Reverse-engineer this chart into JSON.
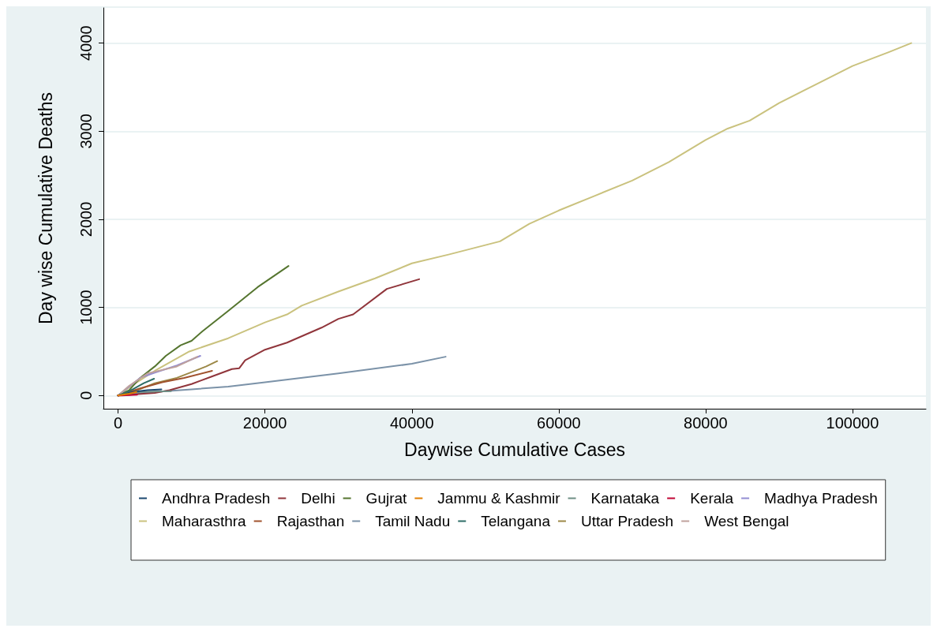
{
  "chart_data": {
    "type": "line",
    "xlabel": "Daywise Cumulative Cases",
    "ylabel": "Day wise Cumulative Deaths",
    "xlim": [
      -2000,
      110000
    ],
    "xticks": [
      0,
      20000,
      40000,
      60000,
      80000,
      100000
    ],
    "ylim": [
      -150,
      4400
    ],
    "yticks": [
      0,
      1000,
      2000,
      3000,
      4000
    ],
    "grid": "y",
    "legend": "bottom",
    "marker": "none",
    "line_style": "solid",
    "series": [
      {
        "name": "Andhra Pradesh",
        "color": "#1a476f",
        "x": [
          0,
          2000,
          4000,
          5900
        ],
        "values": [
          0,
          40,
          60,
          70
        ]
      },
      {
        "name": "Delhi",
        "color": "#90353b",
        "x": [
          0,
          5000,
          7000,
          10000,
          12600,
          15500,
          16500,
          17300,
          20000,
          23000,
          27700,
          30000,
          32000,
          36600,
          41000
        ],
        "values": [
          0,
          30,
          60,
          130,
          210,
          300,
          310,
          400,
          520,
          600,
          770,
          870,
          920,
          1210,
          1320
        ]
      },
      {
        "name": "Gujrat",
        "color": "#55752f",
        "x": [
          0,
          1500,
          3000,
          5000,
          6500,
          8500,
          10000,
          11500,
          15000,
          19000,
          23200
        ],
        "values": [
          0,
          60,
          200,
          330,
          450,
          570,
          620,
          730,
          960,
          1230,
          1470
        ]
      },
      {
        "name": "Jammu & Kashmir",
        "color": "#e37e00",
        "x": [
          0,
          1500,
          2500
        ],
        "values": [
          0,
          20,
          40
        ]
      },
      {
        "name": "Karnataka",
        "color": "#6e8e84",
        "x": [
          0,
          3000,
          7200
        ],
        "values": [
          0,
          40,
          50
        ]
      },
      {
        "name": "Kerala",
        "color": "#c10534",
        "x": [
          0,
          500,
          2600
        ],
        "values": [
          0,
          0,
          10
        ]
      },
      {
        "name": "Madhya Pradesh",
        "color": "#938dd2",
        "x": [
          0,
          1500,
          3000,
          5000,
          8000,
          11200
        ],
        "values": [
          0,
          100,
          200,
          260,
          340,
          450
        ]
      },
      {
        "name": "Maharasthra",
        "color": "#cac27e",
        "x": [
          0,
          2000,
          5000,
          9700,
          15000,
          20000,
          23000,
          25000,
          30000,
          35000,
          40000,
          45000,
          52000,
          56000,
          60000,
          65000,
          70000,
          75000,
          80000,
          83000,
          86000,
          90000,
          95000,
          100000,
          105000,
          108000
        ],
        "values": [
          0,
          120,
          280,
          500,
          650,
          830,
          920,
          1020,
          1180,
          1330,
          1500,
          1600,
          1750,
          1950,
          2100,
          2270,
          2440,
          2650,
          2900,
          3030,
          3120,
          3320,
          3530,
          3740,
          3900,
          4000
        ]
      },
      {
        "name": "Rajasthan",
        "color": "#a0522d",
        "x": [
          0,
          3000,
          6000,
          9000,
          12800
        ],
        "values": [
          0,
          80,
          150,
          200,
          280
        ]
      },
      {
        "name": "Tamil Nadu",
        "color": "#7b92a8",
        "x": [
          0,
          5000,
          10000,
          15000,
          20000,
          30000,
          40000,
          44600
        ],
        "values": [
          0,
          40,
          70,
          100,
          150,
          250,
          360,
          440
        ]
      },
      {
        "name": "Telangana",
        "color": "#2d6d66",
        "x": [
          0,
          1000,
          2000,
          3500,
          4900
        ],
        "values": [
          0,
          30,
          70,
          140,
          190
        ]
      },
      {
        "name": "Uttar Pradesh",
        "color": "#9c8847",
        "x": [
          0,
          2000,
          5000,
          8000,
          12000,
          13500
        ],
        "values": [
          0,
          40,
          140,
          200,
          330,
          390
        ]
      },
      {
        "name": "West Bengal",
        "color": "#bfa19c",
        "x": [
          0,
          1500,
          4000,
          6000,
          8000,
          10800
        ],
        "values": [
          0,
          110,
          250,
          290,
          330,
          440
        ]
      }
    ]
  }
}
